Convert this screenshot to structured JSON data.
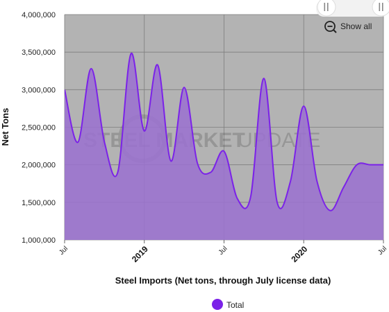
{
  "chart_data": {
    "type": "area",
    "xlabel": "Steel Imports (Net tons, through July license data)",
    "ylabel": "Net Tons",
    "ylim": [
      1000000,
      4000000
    ],
    "yticks": [
      "1,000,000",
      "1,500,000",
      "2,000,000",
      "2,500,000",
      "3,000,000",
      "3,500,000",
      "4,000,000"
    ],
    "xticks": [
      "Jul",
      "2019",
      "Jul",
      "2020",
      "Jul"
    ],
    "xrange": [
      "Jul 2018",
      "Jul 2020"
    ],
    "grid": true,
    "legend_position": "bottom-center",
    "colors": {
      "line": "#7b22e8",
      "fill": "#9b72cf",
      "plot_bg": "#b3b3b3",
      "legend_marker": "#7b22e8"
    },
    "series": [
      {
        "name": "Total",
        "x": [
          "Jul 2018",
          "Aug 2018",
          "Sep 2018",
          "Oct 2018",
          "Nov 2018",
          "Dec 2018",
          "Jan 2019",
          "Feb 2019",
          "Mar 2019",
          "Apr 2019",
          "May 2019",
          "Jun 2019",
          "Jul 2019",
          "Aug 2019",
          "Sep 2019",
          "Oct 2019",
          "Nov 2019",
          "Dec 2019",
          "Jan 2020",
          "Feb 2020",
          "Mar 2020",
          "Apr 2020",
          "May 2020",
          "Jun 2020",
          "Jul 2020"
        ],
        "values": [
          3000000,
          2300000,
          3280000,
          2300000,
          1900000,
          3480000,
          2450000,
          3330000,
          2050000,
          3030000,
          2020000,
          1900000,
          2180000,
          1550000,
          1570000,
          3150000,
          1500000,
          1780000,
          2780000,
          1780000,
          1390000,
          1700000,
          2000000,
          2000000,
          2000000
        ]
      }
    ]
  },
  "watermark": {
    "bold_text": "STEEL MARKET",
    "light_text": "UPDATE"
  },
  "controls": {
    "show_all_label": "Show all",
    "slider_handle_icon": "double-bar-grip-icon"
  }
}
